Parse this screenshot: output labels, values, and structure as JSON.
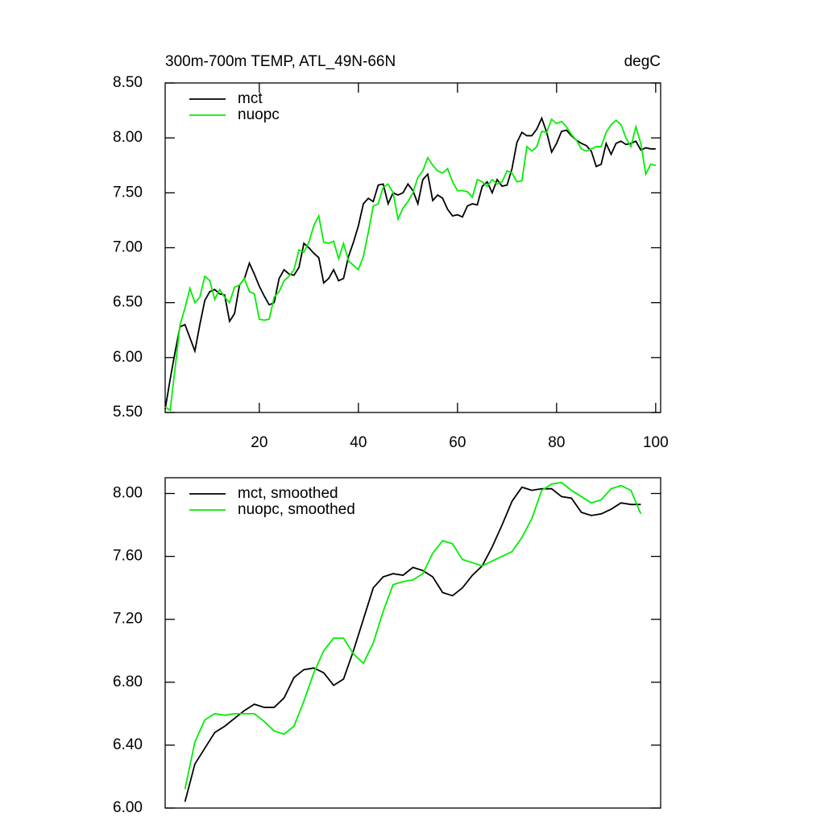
{
  "chart_data": [
    {
      "type": "line",
      "title": "300m-700m TEMP, ATL_49N-66N",
      "title_right": "degC",
      "x": [
        1,
        2,
        3,
        4,
        5,
        6,
        7,
        8,
        9,
        10,
        11,
        12,
        13,
        14,
        15,
        16,
        17,
        18,
        19,
        20,
        21,
        22,
        23,
        24,
        25,
        26,
        27,
        28,
        29,
        30,
        31,
        32,
        33,
        34,
        35,
        36,
        37,
        38,
        39,
        40,
        41,
        42,
        43,
        44,
        45,
        46,
        47,
        48,
        49,
        50,
        51,
        52,
        53,
        54,
        55,
        56,
        57,
        58,
        59,
        60,
        61,
        62,
        63,
        64,
        65,
        66,
        67,
        68,
        69,
        70,
        71,
        72,
        73,
        74,
        75,
        76,
        77,
        78,
        79,
        80,
        81,
        82,
        83,
        84,
        85,
        86,
        87,
        88,
        89,
        90,
        91,
        92,
        93,
        94,
        95,
        96,
        97,
        98,
        99,
        100
      ],
      "series": [
        {
          "name": "mct",
          "color": "#000000",
          "values": [
            5.53,
            5.8,
            6.05,
            6.28,
            6.3,
            6.18,
            6.06,
            6.3,
            6.52,
            6.6,
            6.62,
            6.58,
            6.57,
            6.33,
            6.4,
            6.66,
            6.72,
            6.86,
            6.76,
            6.65,
            6.56,
            6.48,
            6.5,
            6.72,
            6.8,
            6.76,
            6.75,
            6.82,
            7.04,
            7.0,
            6.95,
            6.91,
            6.68,
            6.72,
            6.8,
            6.7,
            6.72,
            6.92,
            7.05,
            7.2,
            7.4,
            7.45,
            7.42,
            7.57,
            7.58,
            7.4,
            7.5,
            7.48,
            7.5,
            7.58,
            7.52,
            7.4,
            7.62,
            7.67,
            7.43,
            7.48,
            7.45,
            7.35,
            7.29,
            7.3,
            7.28,
            7.38,
            7.4,
            7.39,
            7.56,
            7.6,
            7.5,
            7.62,
            7.56,
            7.57,
            7.72,
            7.96,
            8.05,
            8.02,
            8.02,
            8.08,
            8.18,
            8.05,
            7.87,
            7.95,
            8.06,
            8.07,
            8.02,
            7.98,
            7.95,
            7.93,
            7.88,
            7.74,
            7.76,
            7.95,
            7.85,
            7.95,
            7.97,
            7.94,
            7.95,
            7.97,
            7.89,
            7.91,
            7.9,
            7.9
          ]
        },
        {
          "name": "nuopc",
          "color": "#00ee00",
          "values": [
            5.55,
            5.52,
            5.9,
            6.3,
            6.45,
            6.63,
            6.5,
            6.55,
            6.74,
            6.7,
            6.53,
            6.62,
            6.55,
            6.5,
            6.64,
            6.66,
            6.72,
            6.6,
            6.58,
            6.35,
            6.34,
            6.35,
            6.55,
            6.6,
            6.7,
            6.74,
            6.8,
            6.98,
            6.96,
            7.05,
            7.2,
            7.29,
            7.05,
            7.04,
            7.06,
            6.9,
            7.04,
            6.88,
            6.84,
            6.8,
            6.92,
            7.14,
            7.38,
            7.4,
            7.55,
            7.58,
            7.5,
            7.26,
            7.36,
            7.42,
            7.5,
            7.64,
            7.7,
            7.82,
            7.75,
            7.7,
            7.68,
            7.72,
            7.6,
            7.52,
            7.52,
            7.51,
            7.46,
            7.62,
            7.6,
            7.56,
            7.62,
            7.58,
            7.6,
            7.7,
            7.68,
            7.6,
            7.61,
            7.92,
            7.88,
            7.92,
            8.06,
            8.05,
            8.17,
            8.13,
            8.15,
            8.1,
            8.03,
            7.98,
            7.9,
            7.88,
            7.9,
            7.92,
            7.92,
            8.05,
            8.12,
            8.16,
            8.12,
            8.0,
            7.92,
            8.1,
            7.95,
            7.67,
            7.76,
            7.75
          ]
        }
      ],
      "xlim": [
        1,
        101
      ],
      "xticks": [
        20,
        40,
        60,
        80,
        100
      ],
      "ylim": [
        5.5,
        8.5
      ],
      "yticks": [
        {
          "value": 5.5,
          "label": "5.50"
        },
        {
          "value": 6,
          "label": "6.00"
        },
        {
          "value": 6.5,
          "label": "6.50"
        },
        {
          "value": 7,
          "label": "7.00"
        },
        {
          "value": 7.5,
          "label": "7.50"
        },
        {
          "value": 8,
          "label": "8.00"
        },
        {
          "value": 8.5,
          "label": "8.50"
        }
      ],
      "legend": "upper left"
    },
    {
      "type": "line",
      "x": [
        5,
        7,
        9,
        11,
        13,
        15,
        17,
        19,
        21,
        23,
        25,
        27,
        29,
        31,
        33,
        35,
        37,
        39,
        41,
        43,
        45,
        47,
        49,
        51,
        53,
        55,
        57,
        59,
        61,
        63,
        65,
        67,
        69,
        71,
        73,
        75,
        77,
        79,
        81,
        83,
        85,
        87,
        89,
        91,
        93,
        95,
        97
      ],
      "series": [
        {
          "name": "mct, smoothed",
          "color": "#000000",
          "values": [
            6.04,
            6.28,
            6.38,
            6.48,
            6.52,
            6.57,
            6.62,
            6.66,
            6.64,
            6.64,
            6.7,
            6.83,
            6.88,
            6.89,
            6.86,
            6.78,
            6.82,
            7.0,
            7.2,
            7.4,
            7.47,
            7.49,
            7.48,
            7.53,
            7.51,
            7.47,
            7.37,
            7.35,
            7.4,
            7.48,
            7.54,
            7.66,
            7.8,
            7.95,
            8.04,
            8.02,
            8.03,
            8.03,
            7.98,
            7.97,
            7.88,
            7.86,
            7.87,
            7.9,
            7.94,
            7.93,
            7.93
          ]
        },
        {
          "name": "nuopc, smoothed",
          "color": "#00ee00",
          "values": [
            6.12,
            6.42,
            6.56,
            6.6,
            6.59,
            6.6,
            6.6,
            6.6,
            6.55,
            6.49,
            6.47,
            6.52,
            6.68,
            6.86,
            7.0,
            7.08,
            7.08,
            6.98,
            6.92,
            7.05,
            7.25,
            7.42,
            7.44,
            7.45,
            7.49,
            7.62,
            7.7,
            7.68,
            7.58,
            7.56,
            7.54,
            7.57,
            7.6,
            7.63,
            7.72,
            7.84,
            8.02,
            8.06,
            8.07,
            8.02,
            7.98,
            7.94,
            7.96,
            8.03,
            8.05,
            8.02,
            7.87
          ]
        }
      ],
      "xlim": [
        1,
        101
      ],
      "ylim": [
        6.0,
        8.1
      ],
      "yticks": [
        {
          "value": 6,
          "label": "6.00"
        },
        {
          "value": 6.4,
          "label": "6.40"
        },
        {
          "value": 6.8,
          "label": "6.80"
        },
        {
          "value": 7.2,
          "label": "7.20"
        },
        {
          "value": 7.6,
          "label": "7.60"
        },
        {
          "value": 8,
          "label": "8.00"
        }
      ],
      "legend": "upper left"
    }
  ]
}
